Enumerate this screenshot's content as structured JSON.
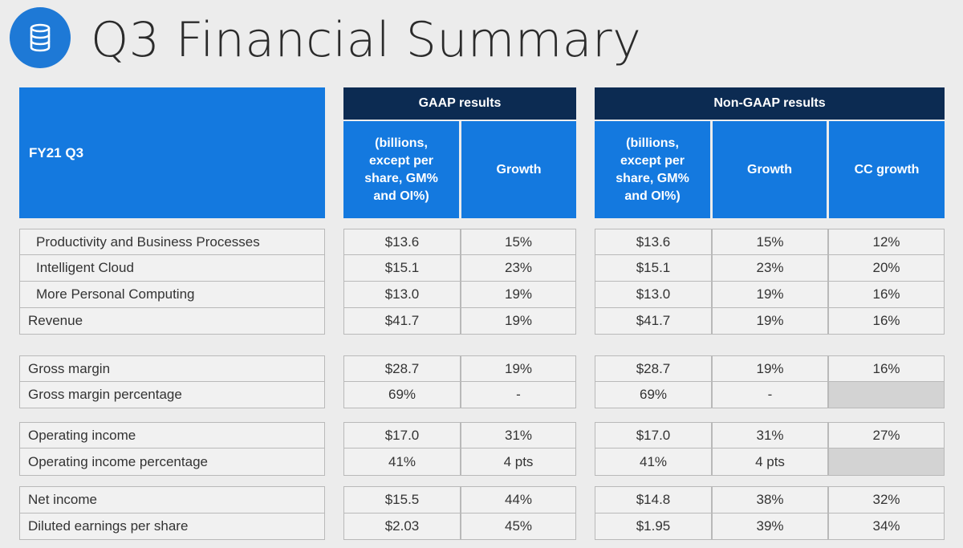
{
  "title": "Q3 Financial Summary",
  "header": {
    "fy": "FY21 Q3",
    "gaap_group": "GAAP results",
    "nongaap_group": "Non-GAAP results",
    "gaap_cols": [
      "(billions, except per share, GM% and OI%)",
      "Growth"
    ],
    "nongaap_cols": [
      "(billions, except per share, GM% and OI%)",
      "Growth",
      "CC growth"
    ]
  },
  "rows": [
    {
      "label": "Productivity and Business Processes",
      "gaap": [
        "$13.6",
        "15%"
      ],
      "nongaap": [
        "$13.6",
        "15%",
        "12%"
      ]
    },
    {
      "label": "Intelligent Cloud",
      "gaap": [
        "$15.1",
        "23%"
      ],
      "nongaap": [
        "$15.1",
        "23%",
        "20%"
      ]
    },
    {
      "label": "More Personal Computing",
      "gaap": [
        "$13.0",
        "19%"
      ],
      "nongaap": [
        "$13.0",
        "19%",
        "16%"
      ]
    },
    {
      "label": "Revenue",
      "gaap": [
        "$41.7",
        "19%"
      ],
      "nongaap": [
        "$41.7",
        "19%",
        "16%"
      ]
    },
    {
      "label": "Gross margin",
      "gaap": [
        "$28.7",
        "19%"
      ],
      "nongaap": [
        "$28.7",
        "19%",
        "16%"
      ]
    },
    {
      "label": "Gross margin percentage",
      "gaap": [
        "69%",
        "-"
      ],
      "nongaap": [
        "69%",
        "-",
        ""
      ]
    },
    {
      "label": "Operating income",
      "gaap": [
        "$17.0",
        "31%"
      ],
      "nongaap": [
        "$17.0",
        "31%",
        "27%"
      ]
    },
    {
      "label": "Operating income percentage",
      "gaap": [
        "41%",
        "4 pts"
      ],
      "nongaap": [
        "41%",
        "4 pts",
        ""
      ]
    },
    {
      "label": "Net income",
      "gaap": [
        "$15.5",
        "44%"
      ],
      "nongaap": [
        "$14.8",
        "38%",
        "32%"
      ]
    },
    {
      "label": "Diluted earnings per share",
      "gaap": [
        "$2.03",
        "45%"
      ],
      "nongaap": [
        "$1.95",
        "39%",
        "34%"
      ]
    }
  ]
}
